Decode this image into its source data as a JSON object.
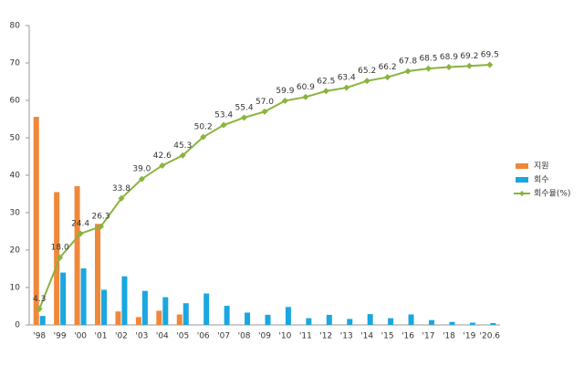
{
  "chart_data": {
    "type": "bar-line",
    "categories": [
      "'98",
      "'99",
      "'00",
      "'01",
      "'02",
      "'03",
      "'04",
      "'05",
      "'06",
      "'07",
      "'08",
      "'09",
      "'10",
      "'11",
      "'12",
      "'13",
      "'14",
      "'15",
      "'16",
      "'17",
      "'18",
      "'19",
      "'20.6"
    ],
    "series": [
      {
        "name": "지원",
        "color": "#f0883a",
        "kind": "bar",
        "values": [
          55.6,
          35.5,
          37.1,
          27.0,
          3.6,
          2.1,
          3.8,
          2.8,
          null,
          null,
          null,
          null,
          null,
          null,
          null,
          null,
          null,
          null,
          null,
          null,
          null,
          null,
          null
        ]
      },
      {
        "name": "회수",
        "color": "#1aa7e0",
        "kind": "bar",
        "values": [
          2.4,
          14.0,
          15.1,
          9.4,
          13.0,
          9.1,
          7.4,
          5.8,
          8.4,
          5.1,
          3.3,
          2.7,
          4.8,
          1.8,
          2.7,
          1.6,
          2.9,
          1.8,
          2.8,
          1.3,
          0.8,
          0.6,
          0.5
        ]
      },
      {
        "name": "회수율(%)",
        "color": "#8ab43f",
        "kind": "line",
        "values": [
          4.3,
          18.0,
          24.4,
          26.3,
          33.8,
          39.0,
          42.6,
          45.3,
          50.2,
          53.4,
          55.4,
          57.0,
          59.9,
          60.9,
          62.5,
          63.4,
          65.2,
          66.2,
          67.8,
          68.5,
          68.9,
          69.2,
          69.5
        ],
        "value_labels": [
          "4.3",
          "18.0",
          "24.4",
          "26.3",
          "33.8",
          "39.0",
          "42.6",
          "45.3",
          "50.2",
          "53.4",
          "55.4",
          "57.0",
          "59.9",
          "60.9",
          "62.5",
          "63.4",
          "65.2",
          "66.2",
          "67.8",
          "68.5",
          "68.9",
          "69.2",
          "69.5"
        ]
      }
    ],
    "ylim": [
      0,
      80
    ],
    "yticks": [
      0,
      10,
      20,
      30,
      40,
      50,
      60,
      70,
      80
    ],
    "grid": false,
    "legend": "right"
  }
}
